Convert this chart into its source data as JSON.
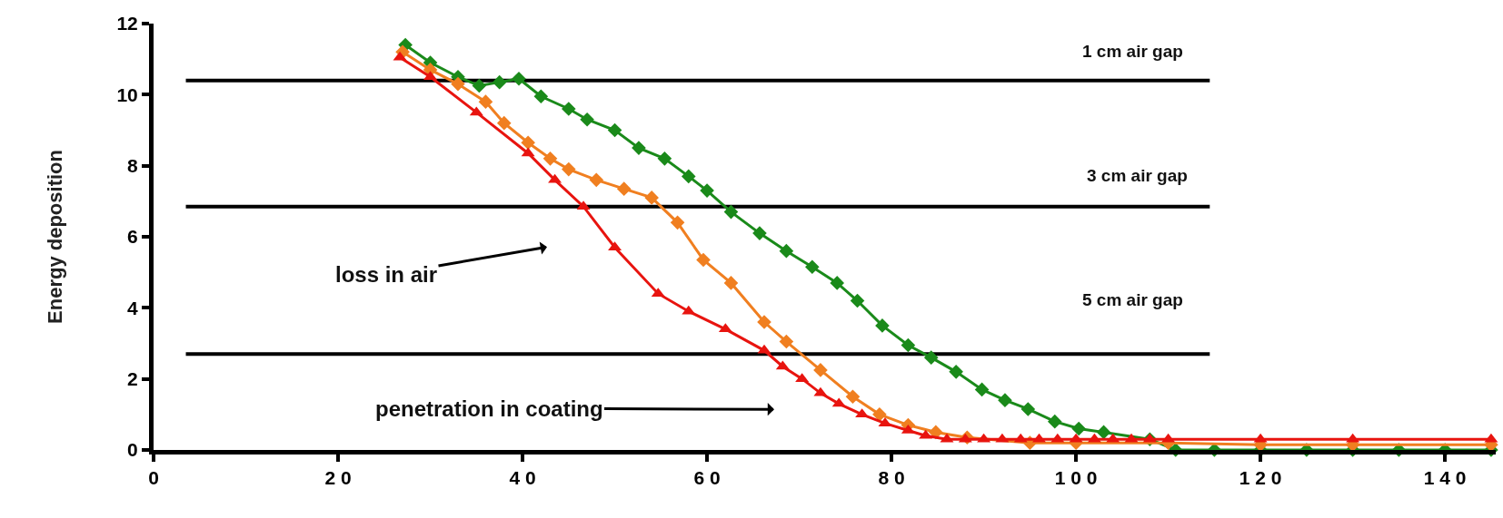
{
  "chart_data": {
    "type": "line",
    "ylabel": "Energy deposition",
    "xlim": [
      0,
      145.5
    ],
    "xticks": [
      0,
      20,
      40,
      60,
      80,
      100,
      120,
      140
    ],
    "ylim": [
      0,
      12
    ],
    "yticks": [
      0,
      2,
      4,
      6,
      8,
      10,
      12
    ],
    "series": [
      {
        "color": "#000000",
        "marker": "none",
        "x": [
          3.5,
          114.5
        ],
        "values": [
          10.4,
          10.4
        ]
      },
      {
        "color": "#000000",
        "marker": "none",
        "x": [
          3.5,
          114.5
        ],
        "values": [
          6.85,
          6.85
        ]
      },
      {
        "color": "#000000",
        "marker": "none",
        "x": [
          3.5,
          114.5
        ],
        "values": [
          2.7,
          2.7
        ]
      },
      {
        "color": "#1a8a1a",
        "marker": "diamond",
        "x": [
          27.3,
          30,
          33,
          35.3,
          37.5,
          39.6,
          42,
          45,
          47,
          50,
          52.6,
          55.4,
          58,
          60,
          62.6,
          65.7,
          68.6,
          71.4,
          74.1,
          76.3,
          79,
          81.8,
          84.3,
          87,
          89.8,
          92.3,
          94.8,
          97.7,
          100.3,
          103,
          108,
          110.8,
          115,
          120,
          125,
          130,
          135,
          140,
          145
        ],
        "values": [
          11.4,
          10.9,
          10.5,
          10.25,
          10.35,
          10.45,
          9.95,
          9.6,
          9.3,
          9.0,
          8.5,
          8.2,
          7.7,
          7.3,
          6.7,
          6.1,
          5.6,
          5.15,
          4.7,
          4.2,
          3.5,
          2.95,
          2.6,
          2.2,
          1.7,
          1.4,
          1.15,
          0.8,
          0.6,
          0.5,
          0.3,
          0,
          0,
          0,
          0,
          0,
          0,
          0,
          0
        ]
      },
      {
        "color": "#f07f20",
        "marker": "diamond",
        "x": [
          27,
          30,
          33,
          36,
          38,
          40.6,
          43,
          45,
          48,
          51,
          54,
          56.8,
          59.6,
          62.6,
          66.2,
          68.6,
          72.3,
          75.8,
          78.7,
          81.8,
          84.8,
          88.2,
          95,
          100,
          110,
          120,
          130,
          145
        ],
        "values": [
          11.2,
          10.7,
          10.3,
          9.8,
          9.2,
          8.65,
          8.2,
          7.9,
          7.6,
          7.35,
          7.1,
          6.4,
          5.35,
          4.7,
          3.6,
          3.05,
          2.25,
          1.5,
          1.0,
          0.7,
          0.5,
          0.35,
          0.2,
          0.2,
          0.2,
          0.15,
          0.15,
          0.15
        ]
      },
      {
        "color": "#e8140f",
        "marker": "triangle",
        "x": [
          26.7,
          30,
          35,
          40.6,
          43.5,
          46.6,
          50,
          54.7,
          58,
          62,
          66.2,
          68.2,
          70.3,
          72.3,
          74.3,
          76.8,
          79.3,
          81.8,
          83.7,
          86,
          88,
          90,
          92,
          94,
          96,
          98,
          100,
          102,
          104,
          106,
          108,
          110,
          120,
          130,
          145
        ],
        "values": [
          11.05,
          10.5,
          9.5,
          8.35,
          7.6,
          6.85,
          5.7,
          4.4,
          3.9,
          3.4,
          2.8,
          2.35,
          2.0,
          1.6,
          1.3,
          1.0,
          0.75,
          0.55,
          0.4,
          0.3,
          0.3,
          0.3,
          0.3,
          0.3,
          0.3,
          0.3,
          0.3,
          0.3,
          0.3,
          0.3,
          0.3,
          0.3,
          0.3,
          0.3,
          0.3
        ]
      }
    ],
    "annotations": [
      "loss in air",
      "penetration in coating",
      "1 cm air gap",
      "3 cm air gap",
      "5 cm air gap"
    ]
  }
}
